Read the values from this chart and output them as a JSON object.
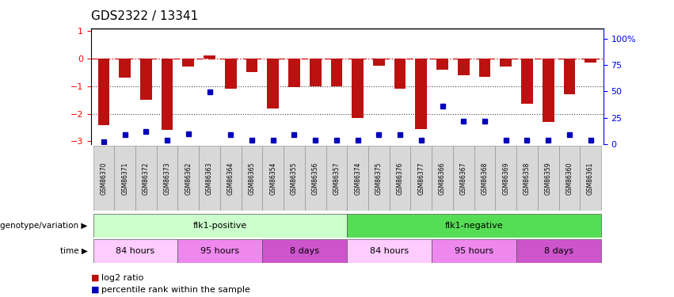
{
  "title": "GDS2322 / 13341",
  "samples": [
    "GSM86370",
    "GSM86371",
    "GSM86372",
    "GSM86373",
    "GSM86362",
    "GSM86363",
    "GSM86364",
    "GSM86365",
    "GSM86354",
    "GSM86355",
    "GSM86356",
    "GSM86357",
    "GSM86374",
    "GSM86375",
    "GSM86376",
    "GSM86377",
    "GSM86366",
    "GSM86367",
    "GSM86368",
    "GSM86369",
    "GSM86358",
    "GSM86359",
    "GSM86360",
    "GSM86361"
  ],
  "log2_ratio": [
    -2.4,
    -0.7,
    -1.5,
    -2.6,
    -0.3,
    0.1,
    -1.1,
    -0.5,
    -1.8,
    -1.05,
    -1.0,
    -1.0,
    -2.15,
    -0.25,
    -1.1,
    -2.55,
    -0.4,
    -0.6,
    -0.65,
    -0.3,
    -1.65,
    -2.3,
    -1.3,
    -0.15
  ],
  "percentile": [
    2,
    8,
    11,
    3,
    9,
    45,
    8,
    3,
    3,
    8,
    3,
    3,
    3,
    8,
    8,
    3,
    33,
    20,
    20,
    3,
    3,
    3,
    8,
    3
  ],
  "bar_color": "#bb1111",
  "dot_color": "#0000bb",
  "left_ylim": [
    -3.1,
    1.1
  ],
  "left_yticks": [
    -3,
    -2,
    -1,
    0,
    1
  ],
  "right_yticks": [
    0,
    25,
    50,
    75,
    100
  ],
  "right_ytick_labels": [
    "0",
    "25",
    "50",
    "75",
    "100%"
  ],
  "hlines_dotted": [
    -2.0,
    -1.0
  ],
  "zero_line_color": "#cc2222",
  "dot_line_color": "#444444",
  "genotype_groups": [
    {
      "label": "flk1-positive",
      "start": 0,
      "end": 12,
      "color": "#ccffcc"
    },
    {
      "label": "flk1-negative",
      "start": 12,
      "end": 24,
      "color": "#55dd55"
    }
  ],
  "time_groups": [
    {
      "label": "84 hours",
      "start": 0,
      "end": 4,
      "color": "#ffccff"
    },
    {
      "label": "95 hours",
      "start": 4,
      "end": 8,
      "color": "#ee88ee"
    },
    {
      "label": "8 days",
      "start": 8,
      "end": 12,
      "color": "#cc55cc"
    },
    {
      "label": "84 hours",
      "start": 12,
      "end": 16,
      "color": "#ffccff"
    },
    {
      "label": "95 hours",
      "start": 16,
      "end": 20,
      "color": "#ee88ee"
    },
    {
      "label": "8 days",
      "start": 20,
      "end": 24,
      "color": "#cc55cc"
    }
  ],
  "row_label_genotype": "genotype/variation",
  "row_label_time": "time",
  "legend_red_text": "log2 ratio",
  "legend_blue_text": "percentile rank within the sample",
  "bar_width": 0.55,
  "fig_bg": "#ffffff"
}
